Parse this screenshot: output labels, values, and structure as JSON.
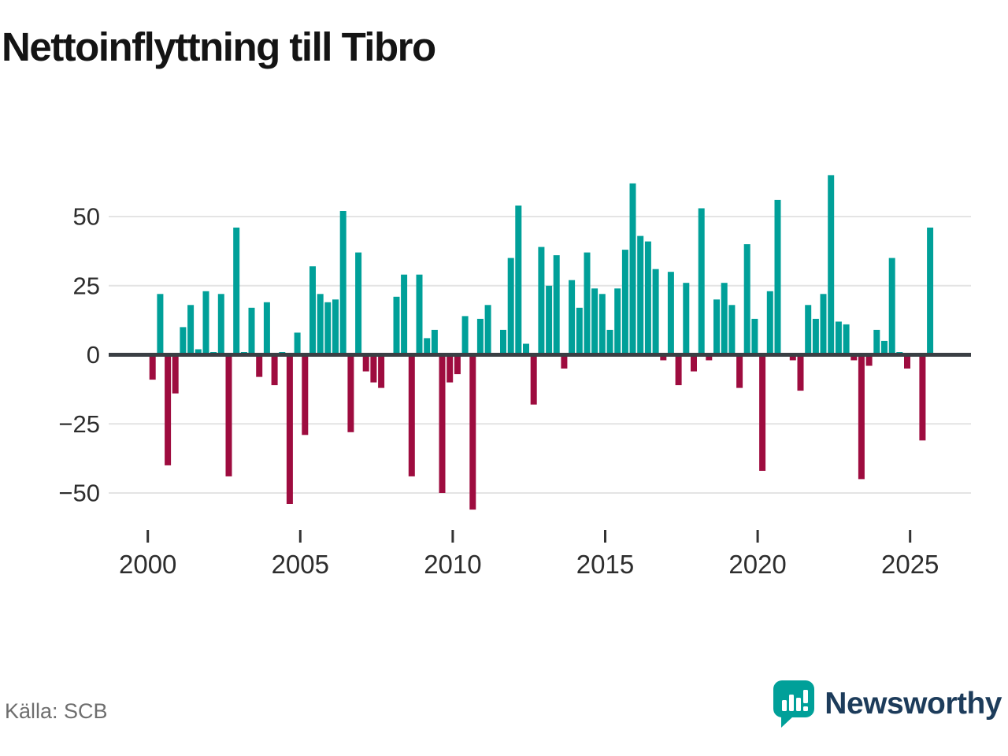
{
  "header": {
    "title": "Nettoinflyttning till Tibro"
  },
  "footer": {
    "source": "Källa: SCB",
    "brand": "Newsworthy"
  },
  "colors": {
    "positive_bar": "#00a099",
    "negative_bar": "#9e0c3f",
    "zero_axis": "#3a3f44",
    "gridline": "#e4e4e4",
    "tick_label": "#2d2d2d",
    "brand_text": "#1d3c5b",
    "brand_icon": "#00a099",
    "source_text": "#6e6e6e"
  },
  "chart_data": {
    "type": "bar",
    "title": "Nettoinflyttning till Tibro",
    "frequency": "quarterly",
    "start": "2000-Q1",
    "end": "2025-Q3",
    "x_ticks": [
      2000,
      2005,
      2010,
      2015,
      2020,
      2025
    ],
    "y_ticks": [
      50,
      25,
      0,
      -25,
      -50
    ],
    "ylim": [
      -62,
      70
    ],
    "grid": true,
    "legend": "none",
    "series": [
      {
        "year": 2000,
        "values": [
          -9,
          22,
          -40,
          -14
        ]
      },
      {
        "year": 2001,
        "values": [
          10,
          18,
          2,
          23
        ]
      },
      {
        "year": 2002,
        "values": [
          1,
          22,
          -44,
          46
        ]
      },
      {
        "year": 2003,
        "values": [
          1,
          17,
          -8,
          19
        ]
      },
      {
        "year": 2004,
        "values": [
          -11,
          1,
          -54,
          8
        ]
      },
      {
        "year": 2005,
        "values": [
          -29,
          32,
          22,
          19
        ]
      },
      {
        "year": 2006,
        "values": [
          20,
          52,
          -28,
          37
        ]
      },
      {
        "year": 2007,
        "values": [
          -6,
          -10,
          -12,
          0
        ]
      },
      {
        "year": 2008,
        "values": [
          21,
          29,
          -44,
          29
        ]
      },
      {
        "year": 2009,
        "values": [
          6,
          9,
          -50,
          -10
        ]
      },
      {
        "year": 2010,
        "values": [
          -7,
          14,
          -56,
          13
        ]
      },
      {
        "year": 2011,
        "values": [
          18,
          0,
          9,
          35
        ]
      },
      {
        "year": 2012,
        "values": [
          54,
          4,
          -18,
          39
        ]
      },
      {
        "year": 2013,
        "values": [
          25,
          36,
          -5,
          27
        ]
      },
      {
        "year": 2014,
        "values": [
          17,
          37,
          24,
          22
        ]
      },
      {
        "year": 2015,
        "values": [
          9,
          24,
          38,
          62
        ]
      },
      {
        "year": 2016,
        "values": [
          43,
          41,
          31,
          -2
        ]
      },
      {
        "year": 2017,
        "values": [
          30,
          -11,
          26,
          -6
        ]
      },
      {
        "year": 2018,
        "values": [
          53,
          -2,
          20,
          26
        ]
      },
      {
        "year": 2019,
        "values": [
          18,
          -12,
          40,
          13
        ]
      },
      {
        "year": 2020,
        "values": [
          -42,
          23,
          56,
          0
        ]
      },
      {
        "year": 2021,
        "values": [
          -2,
          -13,
          18,
          13
        ]
      },
      {
        "year": 2022,
        "values": [
          22,
          65,
          12,
          11
        ]
      },
      {
        "year": 2023,
        "values": [
          -2,
          -45,
          -4,
          9
        ]
      },
      {
        "year": 2024,
        "values": [
          5,
          35,
          1,
          -5
        ]
      },
      {
        "year": 2025,
        "values": [
          0,
          -31,
          46
        ]
      }
    ]
  }
}
